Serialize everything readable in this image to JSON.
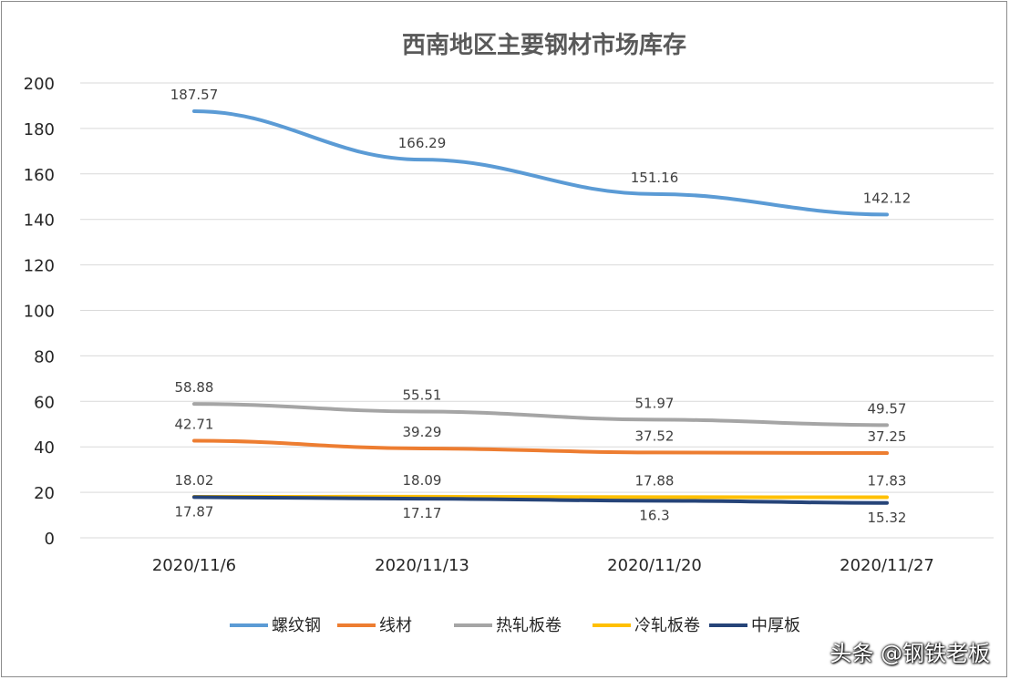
{
  "chart_data": {
    "type": "line",
    "title": "西南地区主要钢材市场库存",
    "xlabel": "",
    "ylabel": "",
    "categories": [
      "2020/11/6",
      "2020/11/13",
      "2020/11/20",
      "2020/11/27"
    ],
    "ylim": [
      0,
      200
    ],
    "yticks": [
      0,
      20,
      40,
      60,
      80,
      100,
      120,
      140,
      160,
      180,
      200
    ],
    "grid": true,
    "legend_position": "bottom",
    "series": [
      {
        "name": "螺纹钢",
        "color": "#5B9BD5",
        "values": [
          187.57,
          166.29,
          151.16,
          142.12
        ],
        "labels": [
          "187.57",
          "166.29",
          "151.16",
          "142.12"
        ],
        "label_side": "above"
      },
      {
        "name": "线材",
        "color": "#ED7D31",
        "values": [
          42.71,
          39.29,
          37.52,
          37.25
        ],
        "labels": [
          "42.71",
          "39.29",
          "37.52",
          "37.25"
        ],
        "label_side": "above"
      },
      {
        "name": "热轧板卷",
        "color": "#A5A5A5",
        "values": [
          58.88,
          55.51,
          51.97,
          49.57
        ],
        "labels": [
          "58.88",
          "55.51",
          "51.97",
          "49.57"
        ],
        "label_side": "above"
      },
      {
        "name": "冷轧板卷",
        "color": "#FFC000",
        "values": [
          18.02,
          18.09,
          17.88,
          17.83
        ],
        "labels": [
          "18.02",
          "18.09",
          "17.88",
          "17.83"
        ],
        "label_side": "above"
      },
      {
        "name": "中厚板",
        "color": "#264478",
        "values": [
          17.87,
          17.17,
          16.3,
          15.32
        ],
        "labels": [
          "17.87",
          "17.17",
          "16.3",
          "15.32"
        ],
        "label_side": "below"
      }
    ]
  },
  "watermark": "头条 @钢铁老板"
}
